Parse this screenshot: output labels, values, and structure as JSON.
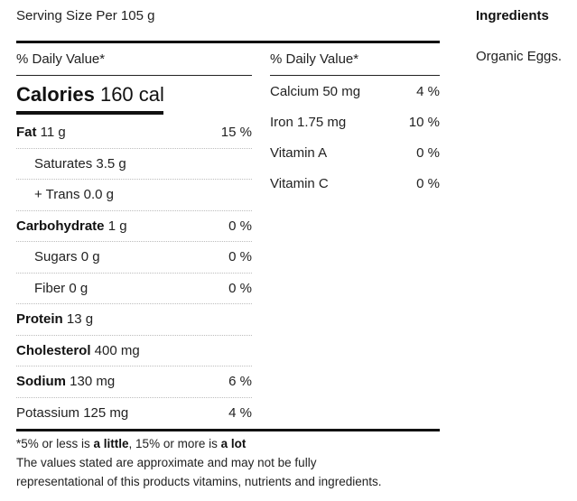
{
  "serving": "Serving Size Per 105 g",
  "ingredients": {
    "title": "Ingredients",
    "text": "Organic Eggs."
  },
  "left": {
    "dv_header": "% Daily Value*",
    "calories_label": "Calories",
    "calories_value": "160 cal",
    "rows": [
      {
        "bold": "Fat",
        "rest": " 11 g",
        "pct": "15 %",
        "sub": false
      },
      {
        "bold": "",
        "rest": "Saturates 3.5 g",
        "pct": "",
        "sub": true
      },
      {
        "bold": "",
        "rest": "+ Trans 0.0 g",
        "pct": "",
        "sub": true
      },
      {
        "bold": "Carbohydrate",
        "rest": " 1 g",
        "pct": "0 %",
        "sub": false
      },
      {
        "bold": "",
        "rest": "Sugars 0 g",
        "pct": "0 %",
        "sub": true
      },
      {
        "bold": "",
        "rest": "Fiber 0 g",
        "pct": "0 %",
        "sub": true
      },
      {
        "bold": "Protein",
        "rest": " 13 g",
        "pct": "",
        "sub": false
      },
      {
        "bold": "Cholesterol",
        "rest": " 400 mg",
        "pct": "",
        "sub": false
      },
      {
        "bold": "Sodium",
        "rest": " 130 mg",
        "pct": "6 %",
        "sub": false
      },
      {
        "bold": "",
        "rest": "Potassium 125 mg",
        "pct": "4 %",
        "sub": false
      }
    ]
  },
  "right": {
    "dv_header": "% Daily Value*",
    "rows": [
      {
        "name": "Calcium 50 mg",
        "pct": "4 %"
      },
      {
        "name": "Iron 1.75 mg",
        "pct": "10 %"
      },
      {
        "name": "Vitamin A",
        "pct": "0 %"
      },
      {
        "name": "Vitamin C",
        "pct": "0 %"
      }
    ]
  },
  "footnote": {
    "pre1": "*5% or less is ",
    "little": "a little",
    "mid": ", 15% or more is ",
    "lot": "a lot",
    "line2": "The values stated are approximate and may not be fully",
    "line3": "representational of this products vitamins, nutrients and ingredients."
  }
}
